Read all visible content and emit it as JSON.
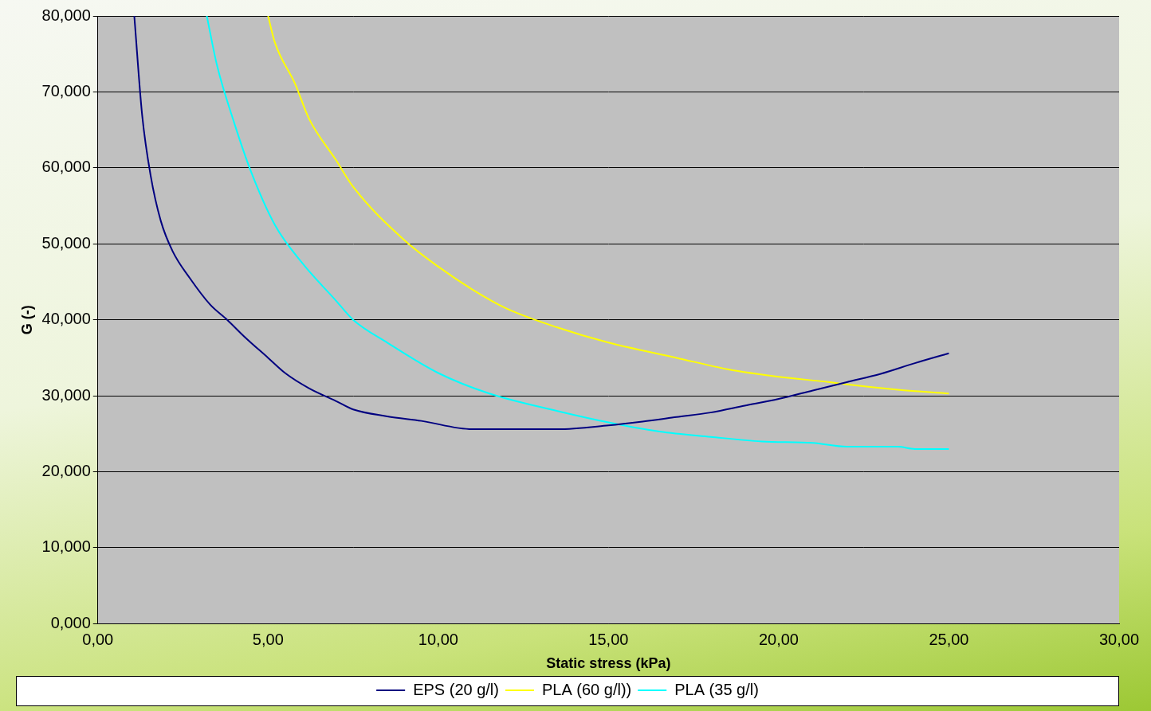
{
  "chart_data": {
    "type": "line",
    "x_label": "Static stress (kPa)",
    "y_label": "G (-)",
    "xlim": [
      0,
      30
    ],
    "xticks": [
      {
        "value": 0,
        "label": "0,00"
      },
      {
        "value": 5,
        "label": "5,00"
      },
      {
        "value": 10,
        "label": "10,00"
      },
      {
        "value": 15,
        "label": "15,00"
      },
      {
        "value": 20,
        "label": "20,00"
      },
      {
        "value": 25,
        "label": "25,00"
      },
      {
        "value": 30,
        "label": "30,00"
      }
    ],
    "ylim": [
      0,
      80
    ],
    "yticks": [
      {
        "value": 0,
        "label": "0,000"
      },
      {
        "value": 10,
        "label": "10,000"
      },
      {
        "value": 20,
        "label": "20,000"
      },
      {
        "value": 30,
        "label": "30,000"
      },
      {
        "value": 40,
        "label": "40,000"
      },
      {
        "value": 50,
        "label": "50,000"
      },
      {
        "value": 60,
        "label": "60,000"
      },
      {
        "value": 70,
        "label": "70,000"
      },
      {
        "value": 80,
        "label": "80,000"
      }
    ],
    "grid": true,
    "legend": "bottom",
    "series": [
      {
        "name": "EPS (20 g/l)",
        "color": "#000080",
        "line_style": "solid",
        "x": [
          1.07,
          1.3,
          1.55,
          1.85,
          2.2,
          2.7,
          3.3,
          3.8,
          4.3,
          5.0,
          5.5,
          6.2,
          7.0,
          7.5,
          8.5,
          9.5,
          11,
          12,
          13.5,
          15,
          16,
          17,
          18,
          19,
          20,
          21,
          22,
          23,
          24,
          25
        ],
        "values": [
          80,
          67,
          59,
          53,
          49,
          45.5,
          42,
          40,
          37.8,
          35,
          33,
          31,
          29.3,
          28.2,
          27.3,
          26.7,
          25.6,
          25.6,
          25.6,
          26.1,
          26.6,
          27.2,
          27.8,
          28.7,
          29.6,
          30.7,
          31.8,
          32.9,
          34.3,
          35.6
        ]
      },
      {
        "name": "PLA (60 g/l))",
        "color": "#ffff00",
        "line_style": "solid",
        "x": [
          5.0,
          5.2,
          5.8,
          6.2,
          7.0,
          7.5,
          9,
          10,
          11,
          12,
          13.5,
          15,
          17,
          18.5,
          20,
          21.5,
          22,
          23.5,
          25
        ],
        "values": [
          80,
          76.5,
          71,
          66.5,
          61,
          57.5,
          50.5,
          47,
          44,
          41.5,
          39,
          37,
          35,
          33.5,
          32.5,
          31.8,
          31.5,
          30.8,
          30.3
        ]
      },
      {
        "name": "PLA (35 g/l)",
        "color": "#00ffff",
        "line_style": "solid",
        "x": [
          3.2,
          3.5,
          4.0,
          4.5,
          5.2,
          6.0,
          7.0,
          7.5,
          8.5,
          10,
          11.5,
          13.5,
          15,
          16.5,
          18,
          19.5,
          21,
          22,
          23.5,
          24,
          25
        ],
        "values": [
          80,
          73.5,
          66,
          59.5,
          52.5,
          47.5,
          42.5,
          40,
          37,
          33,
          30.3,
          28,
          26.5,
          25.3,
          24.6,
          24,
          23.8,
          23.3,
          23.3,
          23,
          23
        ]
      }
    ]
  }
}
